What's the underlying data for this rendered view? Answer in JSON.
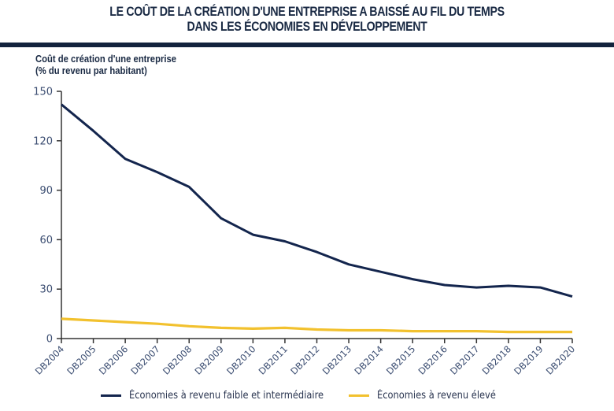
{
  "header": {
    "title_line1": "LE COÛT DE LA CRÉATION D'UNE ENTREPRISE A BAISSÉ AU FIL DU TEMPS",
    "title_line2": "DANS LES ÉCONOMIES EN DÉVELOPPEMENT"
  },
  "chart_data": {
    "type": "line",
    "title": "LE COÛT DE LA CRÉATION D'UNE ENTREPRISE A BAISSÉ AU FIL DU TEMPS DANS LES ÉCONOMIES EN DÉVELOPPEMENT",
    "ylabel_line1": "Coût de création d'une entreprise",
    "ylabel_line2": "(% du revenu par habitant)",
    "xlabel": "",
    "ylim": [
      0,
      150
    ],
    "yticks": [
      0,
      30,
      60,
      90,
      120,
      150
    ],
    "grid": false,
    "legend_position": "bottom",
    "categories": [
      "DB2004",
      "DB2005",
      "DB2006",
      "DB2007",
      "DB2008",
      "DB2009",
      "DB2010",
      "DB2011",
      "DB2012",
      "DB2013",
      "DB2014",
      "DB2015",
      "DB2016",
      "DB2017",
      "DB2018",
      "DB2019",
      "DB2020"
    ],
    "series": [
      {
        "name": "Économies à revenu faible et intermédiaire",
        "color": "#13254d",
        "values": [
          142,
          126,
          109,
          101,
          92,
          73,
          63,
          59,
          52.5,
          45,
          40.5,
          36,
          32.5,
          31,
          32,
          31,
          25.5
        ]
      },
      {
        "name": "Économies à revenu élevé",
        "color": "#f2c12e",
        "values": [
          12,
          11,
          10,
          9,
          7.5,
          6.5,
          6,
          6.5,
          5.5,
          5,
          5,
          4.5,
          4.5,
          4.5,
          4,
          4,
          4
        ]
      }
    ]
  }
}
